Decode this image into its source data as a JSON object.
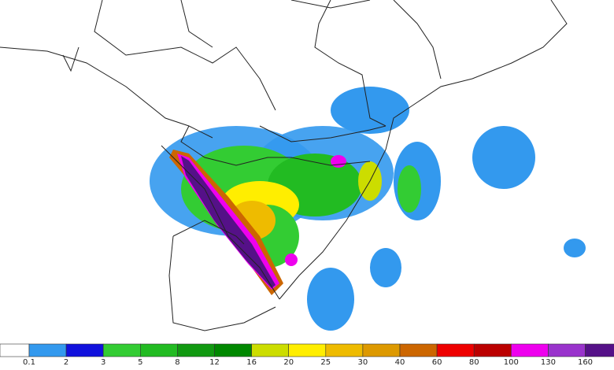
{
  "colorbar": {
    "labels": [
      0.1,
      2,
      3,
      5,
      8,
      12,
      16,
      20,
      25,
      30,
      40,
      60,
      80,
      100,
      130,
      160
    ],
    "colors": [
      "#3399ee",
      "#1111dd",
      "#33cc33",
      "#22bb22",
      "#119911",
      "#008800",
      "#ccdd00",
      "#ffee00",
      "#eebb00",
      "#dd9900",
      "#cc6600",
      "#ee0000",
      "#bb0000",
      "#ee00ee",
      "#9933cc",
      "#551188"
    ]
  }
}
